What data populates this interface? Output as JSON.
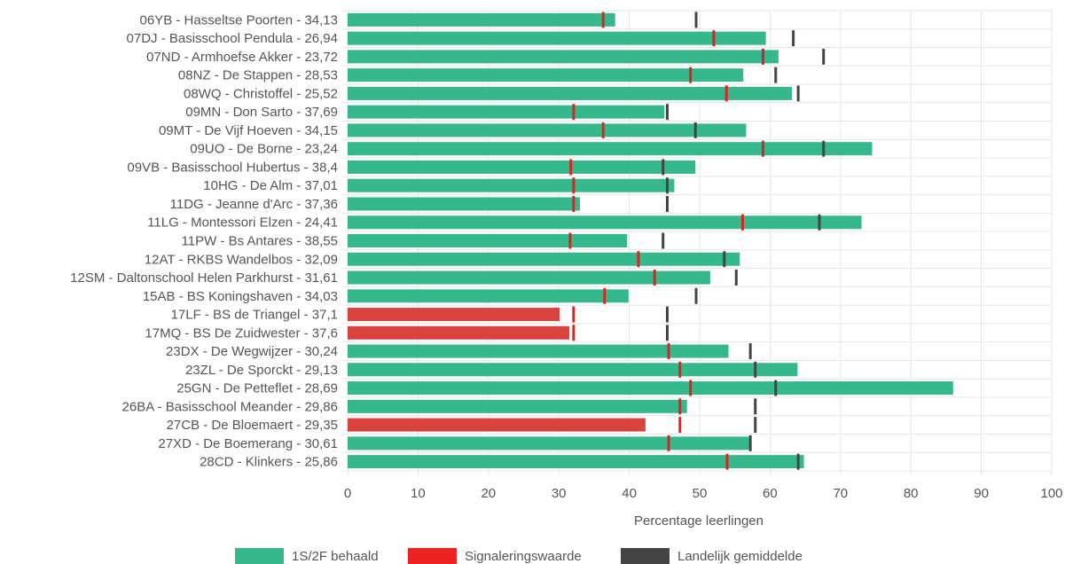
{
  "chart_data": {
    "type": "bar",
    "orientation": "horizontal",
    "xlabel": "Percentage leerlingen",
    "xlim": [
      0,
      100
    ],
    "xticks": [
      "0",
      "10",
      "20",
      "30",
      "40",
      "50",
      "60",
      "70",
      "80",
      "90",
      "100"
    ],
    "grid": true,
    "legend_position": "bottom",
    "categories": [
      "06YB - Hasseltse Poorten - 34,13",
      "07DJ - Basisschool Pendula - 26,94",
      "07ND - Armhoefse Akker - 23,72",
      "08NZ - De Stappen - 28,53",
      "08WQ - Christoffel - 25,52",
      "09MN - Don Sarto - 37,69",
      "09MT - De Vijf Hoeven - 34,15",
      "09UO - De Borne - 23,24",
      "09VB - Basisschool Hubertus - 38,4",
      "10HG - De Alm - 37,01",
      "11DG - Jeanne d'Arc - 37,36",
      "11LG - Montessori Elzen - 24,41",
      "11PW - Bs Antares - 38,55",
      "12AT - RKBS Wandelbos - 32,09",
      "12SM - Daltonschool Helen Parkhurst - 31,61",
      "15AB - BS Koningshaven - 34,03",
      "17LF - BS de Triangel - 37,1",
      "17MQ - BS De Zuidwester - 37,6",
      "23DX - De Wegwijzer - 30,24",
      "23ZL - De Sporckt - 29,13",
      "25GN - De Petteflet - 28,69",
      "26BA - Basisschool Meander - 29,86",
      "27CB - De Bloemaert - 29,35",
      "27XD - De Boemerang - 30,61",
      "28CD - Klinkers - 25,86"
    ],
    "series": [
      {
        "name": "1S/2F behaald",
        "kind": "bar",
        "values": [
          38,
          59.4,
          61.2,
          56.2,
          63.1,
          45,
          56.6,
          74.5,
          49.4,
          46.4,
          33,
          73,
          39.7,
          55.7,
          51.5,
          39.9,
          30.1,
          31.5,
          54.1,
          63.9,
          86,
          48.2,
          42.3,
          57.2,
          64.8
        ]
      },
      {
        "name": "Signaleringswaarde",
        "kind": "marker",
        "values": [
          36.3,
          52,
          59,
          48.7,
          53.8,
          32.1,
          36.3,
          59,
          31.7,
          32.1,
          32.1,
          56.1,
          31.6,
          41.3,
          43.6,
          36.5,
          32.1,
          32.1,
          45.6,
          47.2,
          48.7,
          47.2,
          47.2,
          45.6,
          53.9
        ]
      },
      {
        "name": "Landelijk gemiddelde",
        "kind": "marker",
        "values": [
          49.5,
          63.3,
          67.6,
          60.8,
          64,
          45.4,
          49.4,
          67.6,
          44.8,
          45.4,
          45.4,
          67,
          44.8,
          53.5,
          55.2,
          49.5,
          45.4,
          45.4,
          57.2,
          57.9,
          60.8,
          57.9,
          57.9,
          57.2,
          64
        ]
      }
    ],
    "below_signal_indices": [
      16,
      17,
      22
    ]
  },
  "colors": {
    "bar": "#36b88c",
    "bar_below": "#d9433f",
    "signal": "#dd2222",
    "average": "#444444",
    "grid": "#e6e6e6",
    "text": "#555555"
  }
}
